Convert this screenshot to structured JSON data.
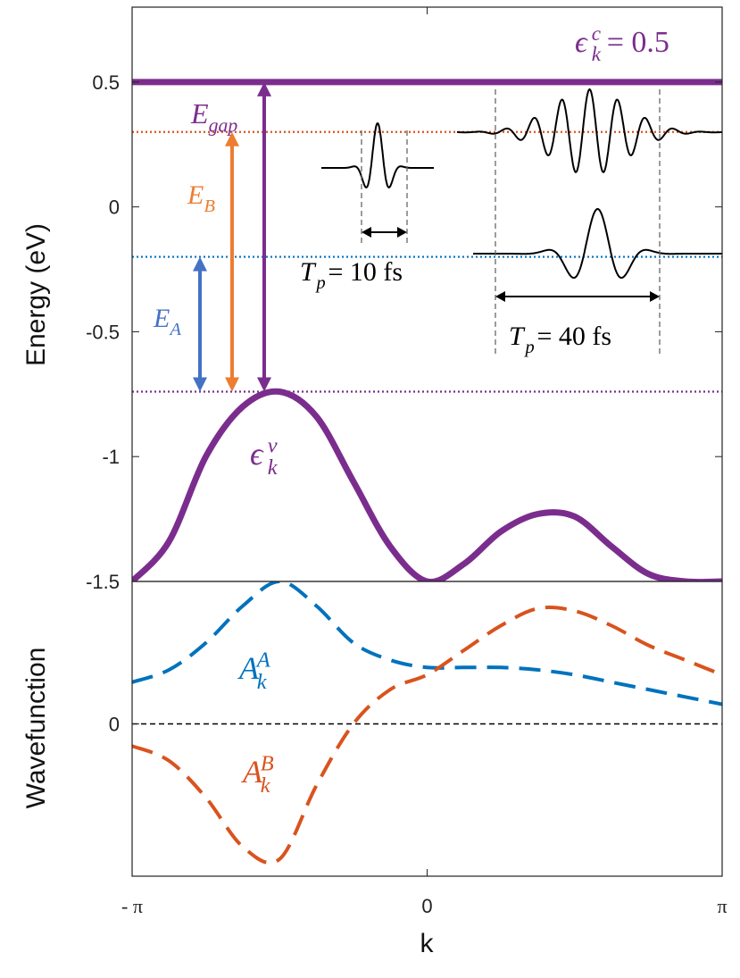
{
  "chart_data": [
    {
      "type": "line",
      "panel": "top",
      "ylabel": "Energy (eV)",
      "ylim": [
        -1.5,
        0.8
      ],
      "yticks": [
        "0.5",
        "0",
        "-0.5",
        "-1",
        "-1.5"
      ],
      "ytick_values": [
        0.5,
        0,
        -0.5,
        -1,
        -1.5
      ],
      "xlim": [
        -3.1416,
        3.1416
      ],
      "series": [
        {
          "label": "ϵ_k^v",
          "color": "#7b2d8e",
          "x": [
            -3.1416,
            -2.7489,
            -2.3562,
            -1.9635,
            -1.5708,
            -1.1781,
            -0.7854,
            -0.3927,
            0.0,
            0.3927,
            0.7854,
            1.1781,
            1.5708,
            1.9635,
            2.3562,
            2.7489,
            3.1416
          ],
          "y": [
            -1.5,
            -1.34,
            -1.0,
            -0.8,
            -0.74,
            -0.84,
            -1.1,
            -1.36,
            -1.5,
            -1.43,
            -1.3,
            -1.23,
            -1.24,
            -1.36,
            -1.47,
            -1.5,
            -1.5
          ]
        },
        {
          "label": "ϵ_k^c = 0.5",
          "color": "#7b2d8e",
          "x": [
            -3.1416,
            3.1416
          ],
          "y": [
            0.5,
            0.5
          ]
        }
      ],
      "reference_lines": [
        {
          "y": 0.3,
          "color": "#d9531e",
          "style": "dotted"
        },
        {
          "y": -0.2,
          "color": "#0070c0",
          "style": "dotted"
        },
        {
          "y": -0.74,
          "color": "#7b2d8e",
          "style": "dotted"
        }
      ],
      "arrows": [
        {
          "label": "E_A",
          "from": -0.74,
          "to": -0.2,
          "color": "#4472c4"
        },
        {
          "label": "E_B",
          "from": -0.74,
          "to": 0.3,
          "color": "#ed7d31"
        },
        {
          "label": "E_gap",
          "from": -0.74,
          "to": 0.5,
          "color": "#7b2d8e"
        }
      ],
      "annotations": {
        "cband": {
          "sym": "ϵ",
          "sup": "c",
          "sub": "k",
          "rest": " = 0.5"
        },
        "vband": {
          "sym": "ϵ",
          "sup": "v",
          "sub": "k"
        },
        "egap": {
          "sym": "E",
          "sub": "gap"
        },
        "eb": {
          "sym": "E",
          "sub": "B"
        },
        "ea": {
          "sym": "E",
          "sub": "A"
        },
        "pulse_short": {
          "sym": "T",
          "sub": "p",
          "rest": " = 10 fs"
        },
        "pulse_long": {
          "sym": "T",
          "sub": "p",
          "rest": " = 40 fs"
        }
      }
    },
    {
      "type": "line",
      "panel": "bottom",
      "ylabel": "Wavefunction",
      "xlabel": "k",
      "xticks": [
        "- π",
        "0",
        "π"
      ],
      "xtick_values": [
        -3.1416,
        0,
        3.1416
      ],
      "yticks": [
        "0"
      ],
      "ytick_values": [
        0
      ],
      "ylim": [
        -0.62,
        0.58
      ],
      "xlim": [
        -3.1416,
        3.1416
      ],
      "series": [
        {
          "label": "A_k^A",
          "color": "#0072bd",
          "x": [
            -3.1416,
            -2.7489,
            -2.3562,
            -1.9635,
            -1.5708,
            -1.1781,
            -0.7854,
            -0.3927,
            0.0,
            0.3927,
            0.7854,
            1.1781,
            1.5708,
            1.9635,
            2.3562,
            2.7489,
            3.1416
          ],
          "y": [
            0.17,
            0.22,
            0.33,
            0.48,
            0.58,
            0.48,
            0.33,
            0.26,
            0.23,
            0.23,
            0.23,
            0.22,
            0.2,
            0.17,
            0.14,
            0.11,
            0.08
          ]
        },
        {
          "label": "A_k^B",
          "color": "#d9531e",
          "x": [
            -3.1416,
            -2.7489,
            -2.3562,
            -1.9635,
            -1.5708,
            -1.1781,
            -0.7854,
            -0.3927,
            0.0,
            0.3927,
            0.7854,
            1.1781,
            1.5708,
            1.9635,
            2.3562,
            2.7489,
            3.1416
          ],
          "y": [
            -0.09,
            -0.15,
            -0.3,
            -0.5,
            -0.55,
            -0.25,
            0.0,
            0.14,
            0.2,
            0.3,
            0.4,
            0.47,
            0.46,
            0.4,
            0.32,
            0.26,
            0.2
          ]
        }
      ],
      "reference_lines": [
        {
          "y": 0,
          "color": "#000000",
          "style": "dashed"
        }
      ],
      "annotations": {
        "aa": {
          "sym": "A",
          "sup": "A",
          "sub": "k"
        },
        "ab": {
          "sym": "A",
          "sup": "B",
          "sub": "k"
        }
      }
    }
  ]
}
